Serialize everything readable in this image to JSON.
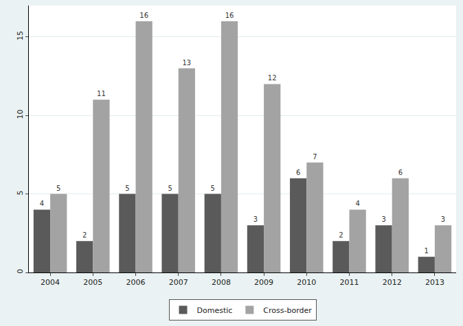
{
  "chart_data": {
    "type": "bar",
    "categories": [
      "2004",
      "2005",
      "2006",
      "2007",
      "2008",
      "2009",
      "2010",
      "2011",
      "2012",
      "2013"
    ],
    "series": [
      {
        "name": "Domestic",
        "color": "#5a5a5a",
        "values": [
          4,
          2,
          5,
          5,
          5,
          3,
          6,
          2,
          3,
          1
        ]
      },
      {
        "name": "Cross-border",
        "color": "#a3a3a3",
        "values": [
          5,
          11,
          16,
          13,
          16,
          12,
          7,
          4,
          6,
          3
        ]
      }
    ],
    "ylim": [
      0,
      17
    ],
    "yticks": [
      0,
      5,
      10,
      15
    ],
    "grid": true,
    "legend": "bottom",
    "data_labels": true
  }
}
